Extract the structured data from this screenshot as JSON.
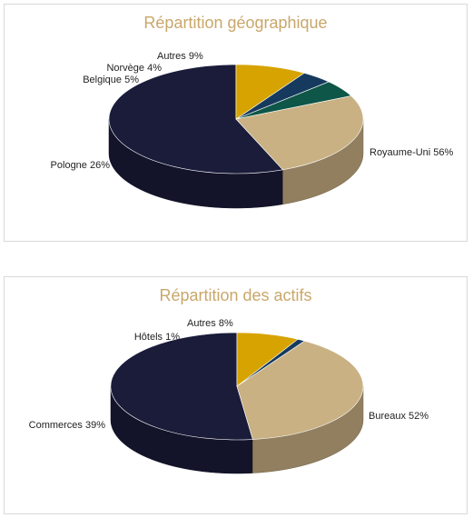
{
  "chart_data": [
    {
      "type": "pie",
      "title": "Répartition géographique",
      "slices": [
        {
          "label": "Royaume-Uni",
          "value": 56,
          "color": "#1a1c3a"
        },
        {
          "label": "Pologne",
          "value": 26,
          "color": "#c9b184"
        },
        {
          "label": "Belgique",
          "value": 5,
          "color": "#0e5647"
        },
        {
          "label": "Norvège",
          "value": 4,
          "color": "#163a5e"
        },
        {
          "label": "Autres",
          "value": 9,
          "color": "#d6a300"
        }
      ]
    },
    {
      "type": "pie",
      "title": "Répartition des actifs",
      "slices": [
        {
          "label": "Bureaux",
          "value": 52,
          "color": "#1a1c3a"
        },
        {
          "label": "Commerces",
          "value": 39,
          "color": "#c9b184"
        },
        {
          "label": "Hôtels",
          "value": 1,
          "color": "#163a5e"
        },
        {
          "label": "Autres",
          "value": 8,
          "color": "#d6a300"
        }
      ]
    }
  ]
}
